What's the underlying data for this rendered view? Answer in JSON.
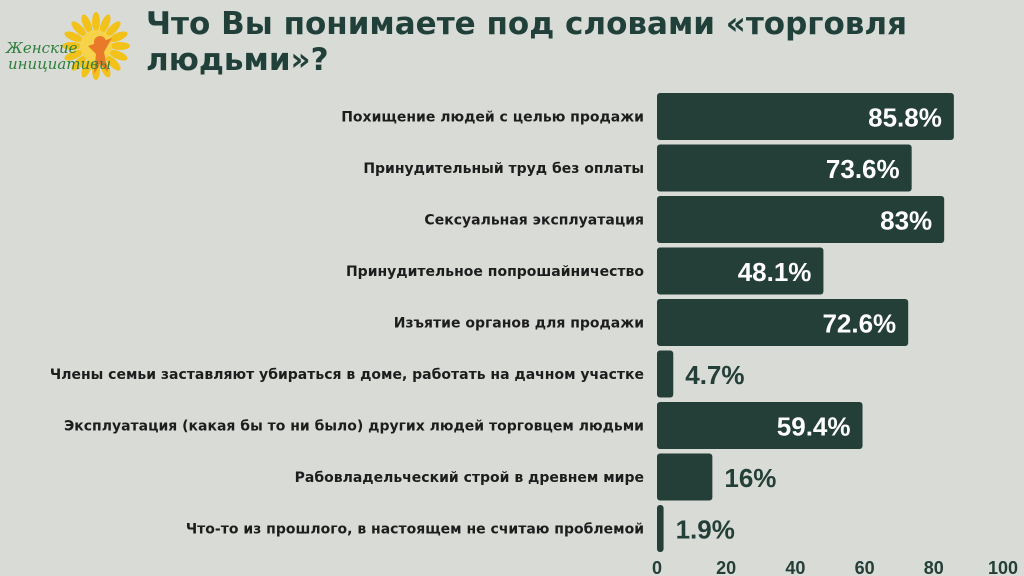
{
  "logo": {
    "line1": "Женские",
    "line2": "инициативы",
    "colors": {
      "petals": "#f2c21a",
      "figure": "#e97a2a",
      "text": "#2f7d3b"
    }
  },
  "title": "Что Вы понимаете под словами «торговля людьми»?",
  "colors": {
    "bar": "#243e38",
    "label": "#1d1d1d",
    "value_inside": "#ffffff",
    "value_outside": "#243e38",
    "background": "#d8dbd6"
  },
  "chart_data": {
    "type": "bar",
    "orientation": "horizontal",
    "title": "Что Вы понимаете под словами «торговля людьми»?",
    "categories": [
      "Похищение людей с целью продажи",
      "Принудительный труд без оплаты",
      "Сексуальная эксплуатация",
      "Принудительное попрошайничество",
      "Изъятие органов для продажи",
      "Члены семьи заставляют убираться в доме, работать на дачном участке",
      "Эксплуатация (какая бы то ни было) других людей торговцем людьми",
      "Рабовладельческий строй в древнем мире",
      "Что-то из прошлого, в настоящем не считаю проблемой"
    ],
    "values": [
      85.8,
      73.6,
      83,
      48.1,
      72.6,
      4.7,
      59.4,
      16,
      1.9
    ],
    "value_labels": [
      "85.8%",
      "73.6%",
      "83%",
      "48.1%",
      "72.6%",
      "4.7%",
      "59.4%",
      "16%",
      "1.9%"
    ],
    "xlim": [
      0,
      100
    ],
    "xticks": [
      0,
      20,
      40,
      60,
      80,
      100
    ],
    "grid": false,
    "legend": "none"
  }
}
